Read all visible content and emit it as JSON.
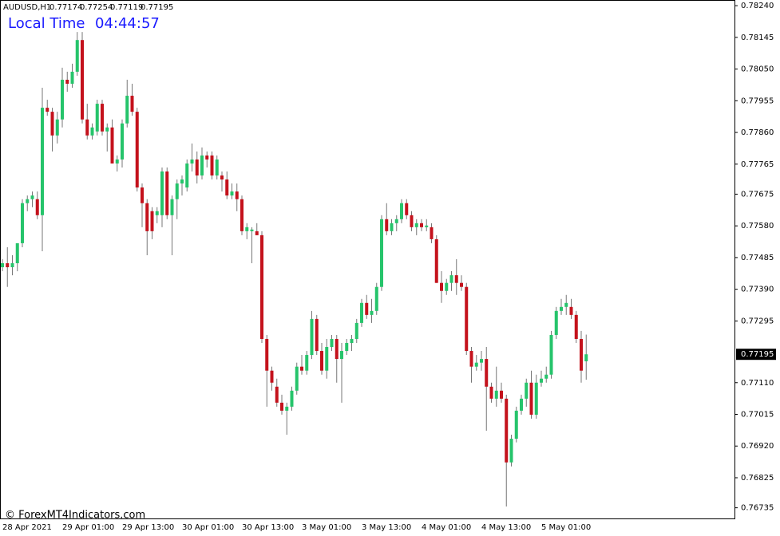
{
  "chart_data": {
    "type": "candlestick",
    "title": "AUDUSD,H1",
    "annotations": [
      "Local Time",
      "04:44:57",
      "© ForexMT4Indicators.com"
    ],
    "categories": [
      "28 Apr 2021",
      null,
      null,
      null,
      null,
      null,
      null,
      null,
      null,
      null,
      null,
      null,
      "29 Apr 01:00",
      null,
      null,
      null,
      null,
      null,
      null,
      null,
      null,
      null,
      null,
      null,
      "29 Apr 13:00",
      null,
      null,
      null,
      null,
      null,
      null,
      null,
      null,
      null,
      null,
      null,
      "30 Apr 01:00",
      null,
      null,
      null,
      null,
      null,
      null,
      null,
      null,
      null,
      null,
      null,
      "30 Apr 13:00",
      null,
      null,
      null,
      null,
      null,
      null,
      null,
      null,
      null,
      null,
      null,
      "3 May 01:00",
      null,
      null,
      null,
      null,
      null,
      null,
      null,
      null,
      null,
      null,
      null,
      "3 May 13:00",
      null,
      null,
      null,
      null,
      null,
      null,
      null,
      null,
      null,
      null,
      null,
      "4 May 01:00",
      null,
      null,
      null,
      null,
      null,
      null,
      null,
      null,
      null,
      null,
      null,
      "4 May 13:00",
      null,
      null,
      null,
      null,
      null,
      null,
      null,
      null,
      null,
      null,
      null,
      "5 May 01:00",
      null,
      null,
      null,
      null,
      null,
      null,
      null,
      null,
      null
    ],
    "open": [
      0.77456,
      0.77468,
      0.77456,
      0.77468,
      0.77528,
      0.77648,
      0.7766,
      0.7766,
      0.77612,
      0.77934,
      0.77922,
      0.77851,
      0.77899,
      0.78018,
      0.78006,
      0.78042,
      0.78137,
      0.77899,
      0.77851,
      0.77863,
      0.77946,
      0.77863,
      0.77875,
      0.77767,
      0.77779,
      0.77887,
      0.7797,
      0.77922,
      0.77695,
      0.77648,
      0.77624,
      0.77612,
      0.77612,
      0.77743,
      0.77612,
      0.7766,
      0.77707,
      0.77695,
      0.77767,
      0.77779,
      0.77731,
      0.77791,
      0.77791,
      0.77731,
      0.77731,
      0.77719,
      0.77671,
      0.77683,
      0.7766,
      0.77564,
      0.77564,
      0.77564,
      0.77552,
      0.77241,
      0.77146,
      0.77098,
      0.7705,
      0.77026,
      0.77038,
      0.77086,
      0.77158,
      0.77146,
      0.77193,
      0.77301,
      0.77205,
      0.77146,
      0.77217,
      0.77241,
      0.77181,
      0.77205,
      0.77229,
      0.77241,
      0.77289,
      0.77349,
      0.77313,
      0.77325,
      0.77397,
      0.776,
      0.77564,
      0.77588,
      0.776,
      0.77648,
      0.77612,
      0.77576,
      0.77588,
      0.77576,
      0.77576,
      0.7754,
      0.77409,
      0.77385,
      0.77409,
      0.77432,
      0.77409,
      0.77397,
      0.77205,
      0.77158,
      0.7717,
      0.77181,
      0.77098,
      0.77062,
      0.77086,
      0.77062,
      0.76871,
      0.76942,
      0.77026,
      0.77062,
      0.7711,
      0.77014,
      0.7711,
      0.77122,
      0.77134,
      0.77253,
      0.77325,
      0.77337,
      0.77337,
      0.77313,
      0.77241,
      0.77174
    ],
    "high": [
      0.7748,
      0.77516,
      0.77492,
      0.77528,
      0.7766,
      0.77671,
      0.77683,
      0.77683,
      0.77994,
      0.77958,
      0.77934,
      0.77922,
      0.78054,
      0.78042,
      0.78066,
      0.78161,
      0.78161,
      0.77946,
      0.77887,
      0.77958,
      0.77958,
      0.77887,
      0.77899,
      0.77791,
      0.77899,
      0.78018,
      0.78006,
      0.77934,
      0.77707,
      0.7766,
      0.77636,
      0.77636,
      0.77755,
      0.77755,
      0.77671,
      0.77719,
      0.77731,
      0.77779,
      0.77827,
      0.77803,
      0.77815,
      0.77803,
      0.77803,
      0.77791,
      0.77743,
      0.77743,
      0.77707,
      0.77707,
      0.77671,
      0.77588,
      0.77576,
      0.77588,
      0.77564,
      0.77253,
      0.77158,
      0.77122,
      0.77074,
      0.7705,
      0.77098,
      0.7717,
      0.77193,
      0.77205,
      0.77325,
      0.77313,
      0.77229,
      0.77241,
      0.77253,
      0.77253,
      0.77229,
      0.77241,
      0.77253,
      0.77301,
      0.77361,
      0.77373,
      0.77361,
      0.77409,
      0.77612,
      0.77648,
      0.776,
      0.77612,
      0.7766,
      0.7766,
      0.77624,
      0.776,
      0.776,
      0.776,
      0.77588,
      0.77552,
      0.77444,
      0.77421,
      0.77444,
      0.7748,
      0.77432,
      0.77409,
      0.77217,
      0.77193,
      0.77205,
      0.77217,
      0.7711,
      0.77158,
      0.7711,
      0.77074,
      0.76954,
      0.77038,
      0.77074,
      0.77122,
      0.77146,
      0.77134,
      0.77146,
      0.77158,
      0.77265,
      0.77337,
      0.77361,
      0.77373,
      0.77361,
      0.77325,
      0.77265,
      0.77254
    ],
    "low": [
      0.77444,
      0.77397,
      0.77432,
      0.77444,
      0.77516,
      0.77624,
      0.77636,
      0.776,
      0.77504,
      0.7791,
      0.77803,
      0.77827,
      0.77875,
      0.77982,
      0.77994,
      0.7803,
      0.77887,
      0.77839,
      0.77839,
      0.77851,
      0.77851,
      0.77803,
      0.77767,
      0.77743,
      0.77755,
      0.77875,
      0.7791,
      0.77683,
      0.77576,
      0.77492,
      0.7754,
      0.77588,
      0.77576,
      0.776,
      0.77492,
      0.776,
      0.77671,
      0.77683,
      0.77743,
      0.77707,
      0.77719,
      0.77755,
      0.77719,
      0.77719,
      0.77683,
      0.7766,
      0.7766,
      0.77624,
      0.77552,
      0.7754,
      0.77468,
      0.77552,
      0.77229,
      0.77038,
      0.77086,
      0.77038,
      0.77014,
      0.76954,
      0.77026,
      0.77074,
      0.77134,
      0.77134,
      0.77181,
      0.77193,
      0.77134,
      0.77122,
      0.77205,
      0.7711,
      0.7705,
      0.77193,
      0.77205,
      0.77229,
      0.77277,
      0.77301,
      0.77289,
      0.77313,
      0.77385,
      0.77552,
      0.77552,
      0.77564,
      0.77588,
      0.776,
      0.77564,
      0.77552,
      0.77564,
      0.77564,
      0.77528,
      0.77409,
      0.77349,
      0.77373,
      0.77385,
      0.77373,
      0.77385,
      0.77193,
      0.7711,
      0.77146,
      0.77146,
      0.76966,
      0.7705,
      0.77038,
      0.7705,
      0.76739,
      0.76859,
      0.76931,
      0.77014,
      0.77038,
      0.77002,
      0.77002,
      0.77098,
      0.7711,
      0.77122,
      0.77241,
      0.77313,
      0.77313,
      0.77301,
      0.77229,
      0.7711,
      0.77119
    ],
    "close": [
      0.77468,
      0.77456,
      0.77468,
      0.77528,
      0.77648,
      0.7766,
      0.77671,
      0.77612,
      0.77934,
      0.77922,
      0.77851,
      0.77899,
      0.78018,
      0.78006,
      0.78042,
      0.78137,
      0.77899,
      0.77851,
      0.77875,
      0.77946,
      0.77863,
      0.77875,
      0.77767,
      0.77779,
      0.77887,
      0.7797,
      0.77922,
      0.77695,
      0.77648,
      0.77564,
      0.77564,
      0.77624,
      0.77743,
      0.77612,
      0.7766,
      0.77707,
      0.77719,
      0.77767,
      0.77779,
      0.77731,
      0.77791,
      0.77779,
      0.77731,
      0.77779,
      0.77719,
      0.77671,
      0.77683,
      0.7766,
      0.77564,
      0.77576,
      0.77569,
      0.77552,
      0.77241,
      0.77146,
      0.7711,
      0.7705,
      0.77026,
      0.77038,
      0.77086,
      0.77158,
      0.77146,
      0.77193,
      0.77301,
      0.77205,
      0.77146,
      0.77217,
      0.77241,
      0.77181,
      0.77205,
      0.77229,
      0.77241,
      0.77289,
      0.77349,
      0.77313,
      0.77325,
      0.77397,
      0.776,
      0.77564,
      0.77588,
      0.776,
      0.77648,
      0.77612,
      0.77576,
      0.77588,
      0.77576,
      0.77581,
      0.7754,
      0.77409,
      0.77385,
      0.77409,
      0.77432,
      0.77409,
      0.77397,
      0.77205,
      0.77158,
      0.7717,
      0.77181,
      0.77098,
      0.77062,
      0.77086,
      0.77062,
      0.76871,
      0.76942,
      0.77026,
      0.77062,
      0.7711,
      0.77014,
      0.7711,
      0.77122,
      0.77134,
      0.77253,
      0.77325,
      0.77337,
      0.77349,
      0.77313,
      0.77241,
      0.77146,
      0.77195
    ],
    "up_color": "#26c46b",
    "down_color": "#c4121c",
    "ylim": [
      0.76703,
      0.78257
    ],
    "yticks": [
      {
        "value": 0.7824,
        "label": "0.78240"
      },
      0.78145,
      {
        "value": 0.7805,
        "label": "0.78050"
      },
      0.77955,
      {
        "value": 0.7786,
        "label": "0.77860"
      },
      0.77765,
      0.77675,
      {
        "value": 0.7758,
        "label": "0.77580"
      },
      0.77485,
      {
        "value": 0.7739,
        "label": "0.77390"
      },
      0.77295,
      {
        "value": 0.7711,
        "label": "0.77110"
      },
      0.77015,
      {
        "value": 0.7692,
        "label": "0.76920"
      },
      0.76825,
      0.76735
    ]
  }
}
